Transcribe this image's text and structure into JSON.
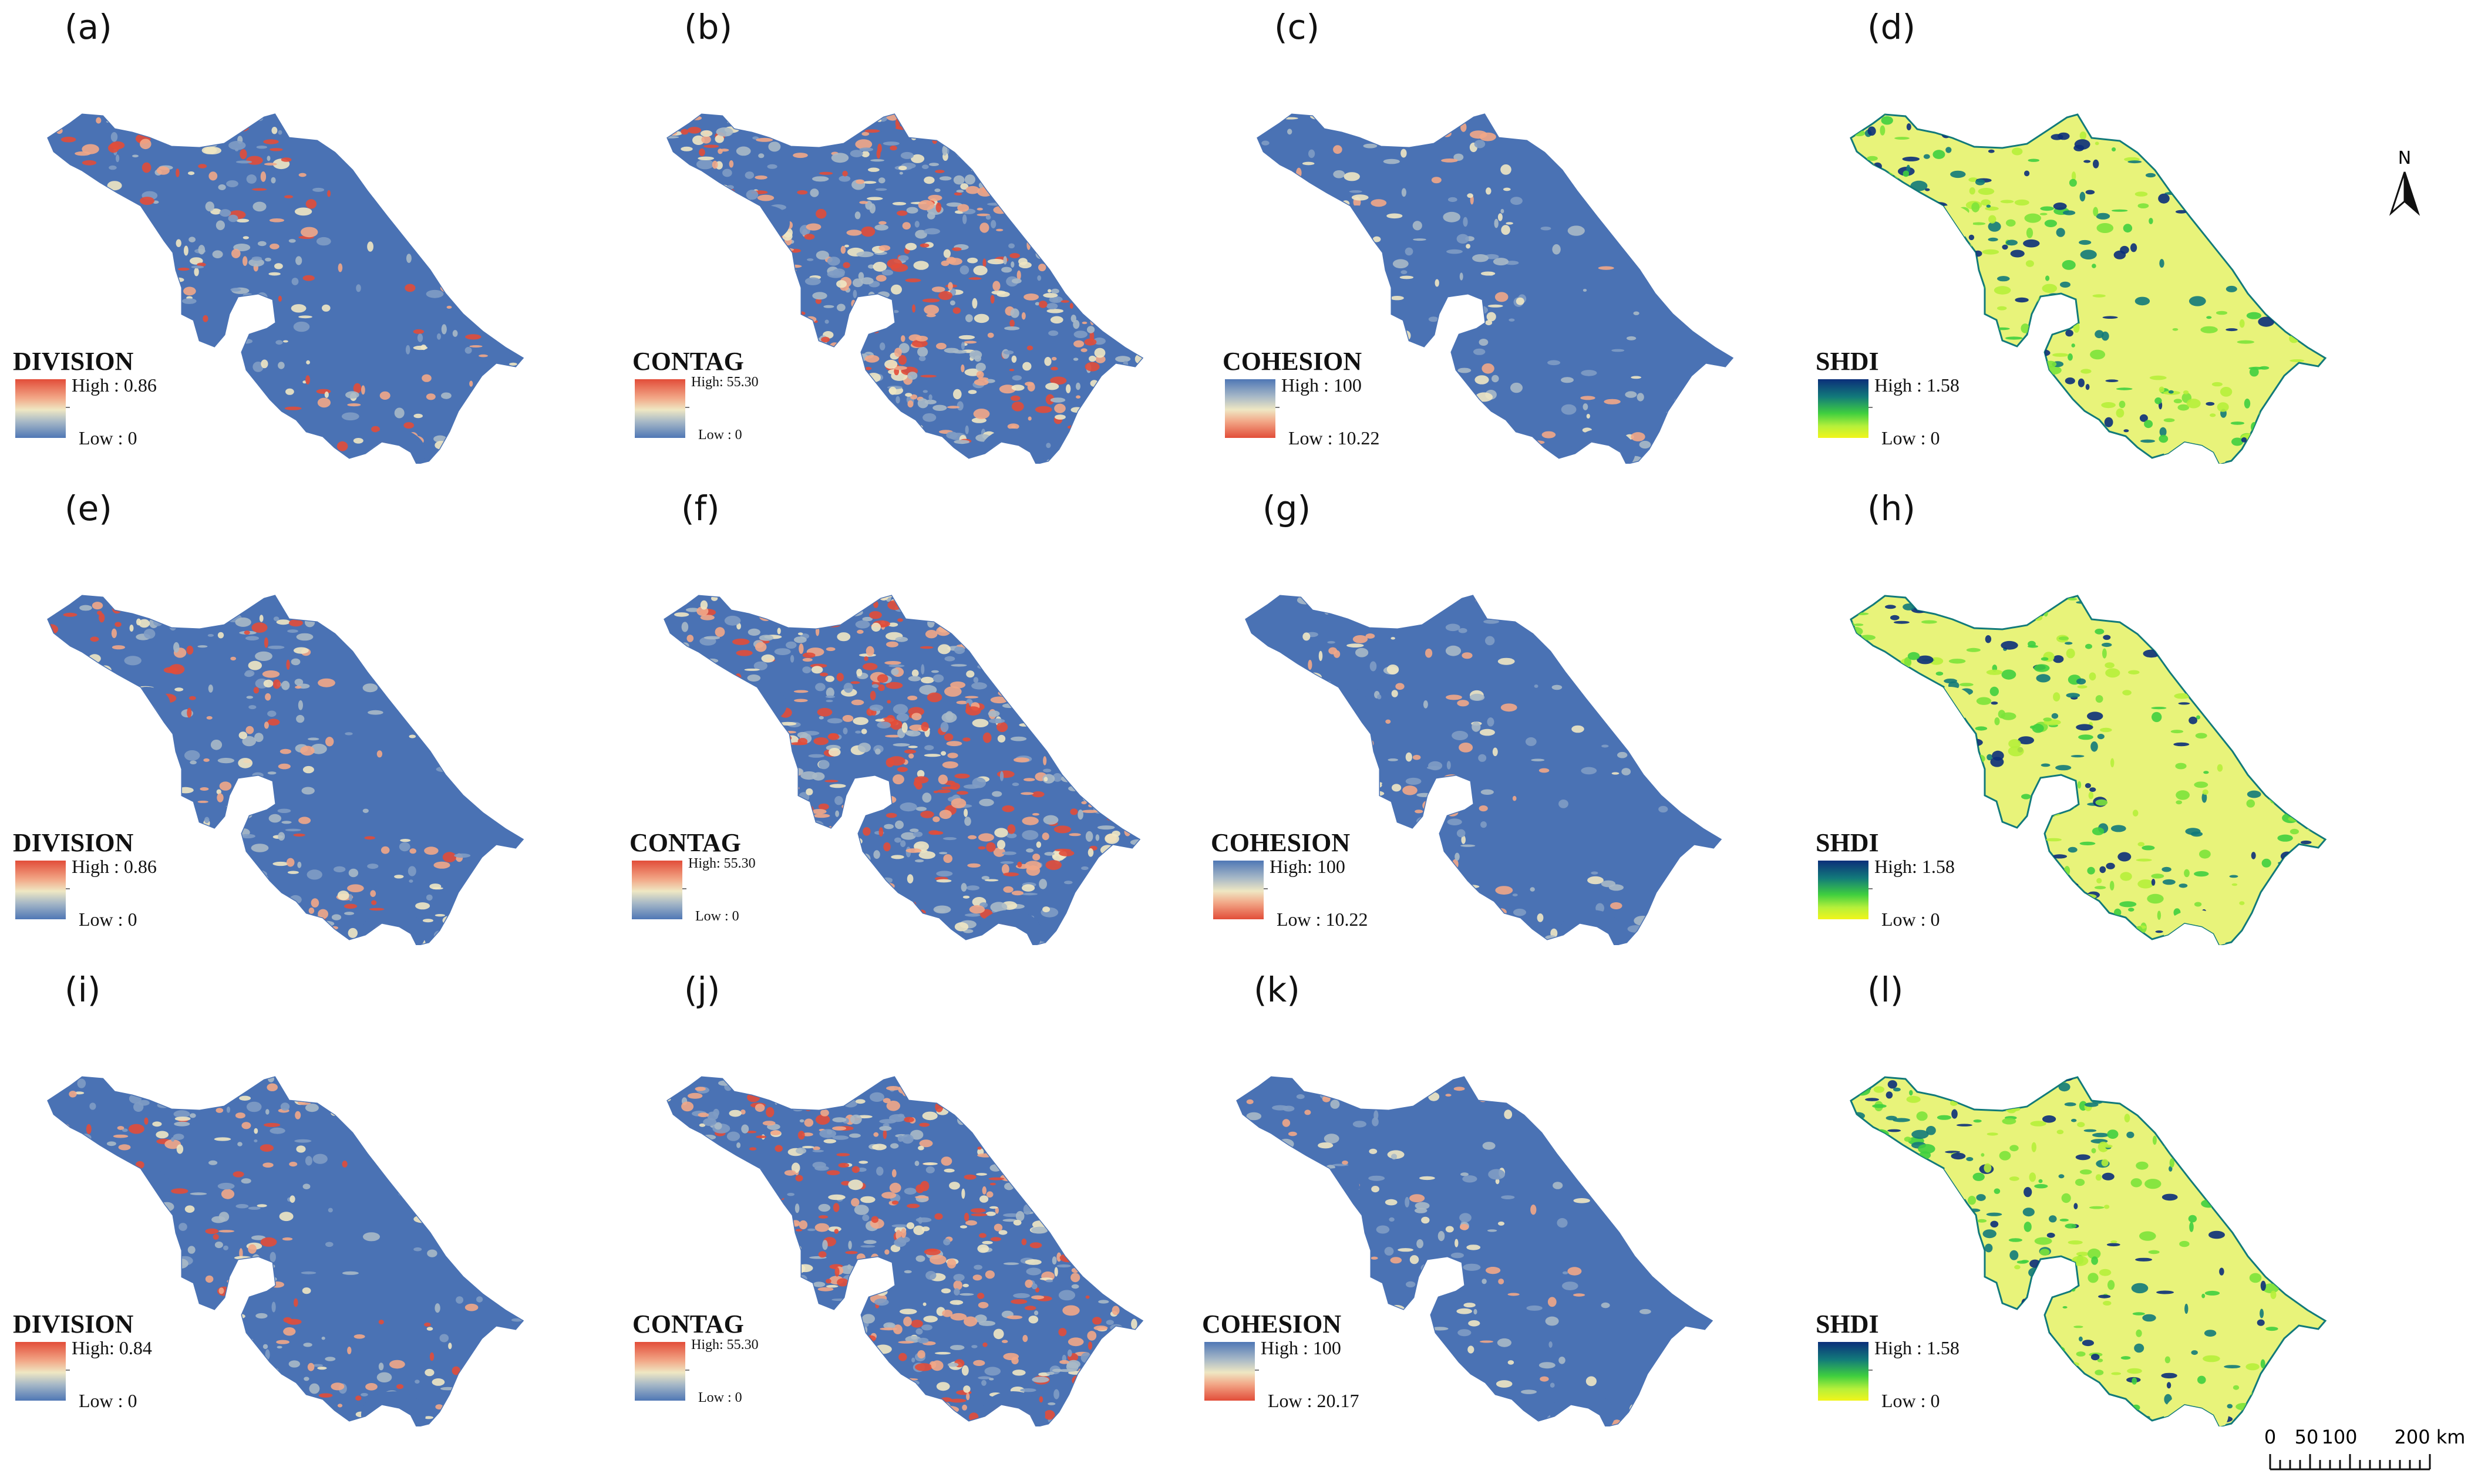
{
  "panels": [
    {
      "label": "(a)",
      "title": "DIVISION",
      "high": "High : 0.86",
      "low": "Low : 0",
      "ramp": "div"
    },
    {
      "label": "(b)",
      "title": "CONTAG",
      "high": "High: 55.30",
      "low": "Low : 0",
      "ramp": "div"
    },
    {
      "label": "(c)",
      "title": "COHESION",
      "high": "High : 100",
      "low": "Low  : 10.22",
      "ramp": "coh"
    },
    {
      "label": "(d)",
      "title": "SHDI",
      "high": "High : 1.58",
      "low": "Low  : 0",
      "ramp": "shdi"
    },
    {
      "label": "(e)",
      "title": "DIVISION",
      "high": "High : 0.86",
      "low": "Low : 0",
      "ramp": "div"
    },
    {
      "label": "(f)",
      "title": "CONTAG",
      "high": "High: 55.30",
      "low": "Low : 0",
      "ramp": "div"
    },
    {
      "label": "(g)",
      "title": "COHESION",
      "high": "High: 100",
      "low": "Low  : 10.22",
      "ramp": "coh"
    },
    {
      "label": "(h)",
      "title": "SHDI",
      "high": "High: 1.58",
      "low": "Low  : 0",
      "ramp": "shdi"
    },
    {
      "label": "(i)",
      "title": "DIVISION",
      "high": "High: 0.84",
      "low": "Low : 0",
      "ramp": "div"
    },
    {
      "label": "(j)",
      "title": "CONTAG",
      "high": "High: 55.30",
      "low": "Low : 0",
      "ramp": "div"
    },
    {
      "label": "(k)",
      "title": "COHESION",
      "high": "High : 100",
      "low": "Low  : 20.17",
      "ramp": "coh"
    },
    {
      "label": "(l)",
      "title": "SHDI",
      "high": "High : 1.58",
      "low": "Low : 0",
      "ramp": "shdi"
    }
  ],
  "north": {
    "letter": "N"
  },
  "scale": {
    "labels": [
      "0",
      "50",
      "100",
      "200 km"
    ],
    "values_km": [
      0,
      50,
      100,
      200
    ]
  },
  "colors": {
    "div_low": "#4f77b5",
    "div_high": "#e24d39",
    "shdi_low": "#f2f51a",
    "shdi_mid": "#3fcf3f",
    "shdi_high": "#0b2f7a",
    "map_blue": "#4a72b4"
  }
}
